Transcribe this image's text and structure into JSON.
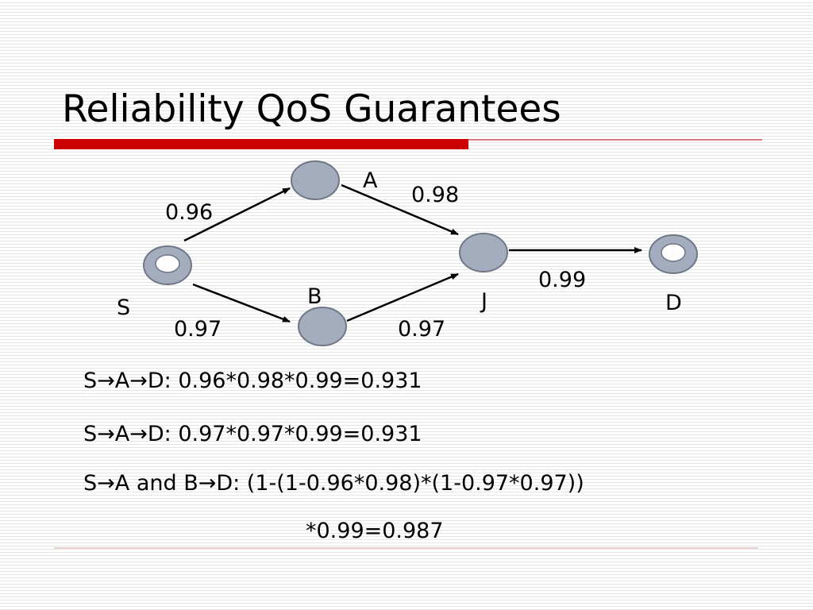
{
  "title": "Reliability QoS Guarantees",
  "nodes": [
    {
      "label": "S"
    },
    {
      "label": "A"
    },
    {
      "label": "B"
    },
    {
      "label": "J"
    },
    {
      "label": "D"
    }
  ],
  "edges": [
    {
      "label": "0.96"
    },
    {
      "label": "0.98"
    },
    {
      "label": "0.97"
    },
    {
      "label": "0.97"
    },
    {
      "label": "0.99"
    }
  ],
  "formulas": [
    "S→A→D: 0.96*0.98*0.99=0.931",
    "S→A→D: 0.97*0.97*0.99=0.931",
    "S→A and B→D: (1-(1-0.96*0.98)*(1-0.97*0.97))",
    "*0.99=0.987"
  ]
}
